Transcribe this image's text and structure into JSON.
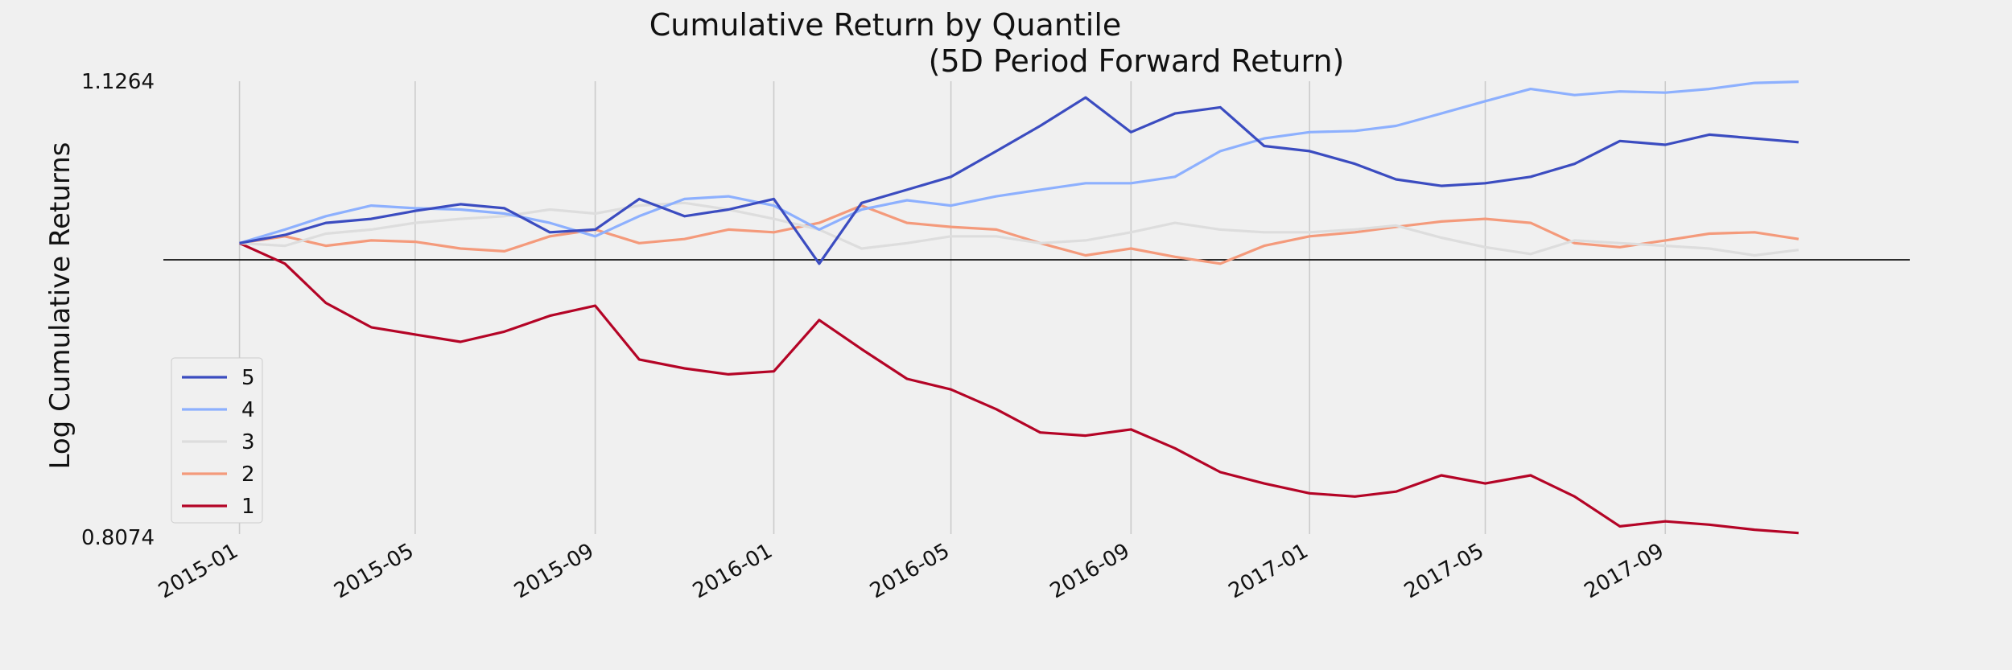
{
  "chart_data": {
    "type": "line",
    "title": "Cumulative Return by Quantile",
    "subtitle": "(5D Period Forward Return)",
    "ylabel": "Log Cumulative Returns",
    "xlabel": "",
    "y_scale": "log",
    "ylim": [
      0.8074,
      1.1264
    ],
    "y_tick_labels": [
      "1.1264",
      "0.8074"
    ],
    "x_tick_labels": [
      "2015-01",
      "2015-05",
      "2015-09",
      "2016-01",
      "2016-05",
      "2016-09",
      "2017-01",
      "2017-05",
      "2017-09"
    ],
    "x_tick_dates": [
      "2015-01-01",
      "2015-05-01",
      "2015-09-01",
      "2016-01-01",
      "2016-05-01",
      "2016-09-01",
      "2017-01-01",
      "2017-05-01",
      "2017-09-01"
    ],
    "x_range": [
      "2014-11-10",
      "2018-02-15"
    ],
    "baseline": 1.0,
    "grid": "vertical",
    "legend_position": "lower-left",
    "x": [
      "2015-01-01",
      "2015-02-01",
      "2015-03-01",
      "2015-04-01",
      "2015-05-01",
      "2015-06-01",
      "2015-07-01",
      "2015-08-01",
      "2015-09-01",
      "2015-10-01",
      "2015-11-01",
      "2015-12-01",
      "2016-01-01",
      "2016-02-01",
      "2016-03-01",
      "2016-04-01",
      "2016-05-01",
      "2016-06-01",
      "2016-07-01",
      "2016-08-01",
      "2016-09-01",
      "2016-10-01",
      "2016-11-01",
      "2016-12-01",
      "2017-01-01",
      "2017-02-01",
      "2017-03-01",
      "2017-04-01",
      "2017-05-01",
      "2017-06-01",
      "2017-07-01",
      "2017-08-01",
      "2017-09-01",
      "2017-10-01",
      "2017-11-01",
      "2017-12-01"
    ],
    "series": [
      {
        "name": "5",
        "color": "#3b4cc0",
        "values": [
          1.0,
          1.006,
          1.015,
          1.018,
          1.024,
          1.029,
          1.026,
          1.008,
          1.01,
          1.033,
          1.02,
          1.025,
          1.033,
          0.985,
          1.03,
          1.04,
          1.05,
          1.07,
          1.09,
          1.113,
          1.085,
          1.1,
          1.105,
          1.074,
          1.07,
          1.06,
          1.048,
          1.043,
          1.045,
          1.05,
          1.06,
          1.078,
          1.075,
          1.083,
          1.08,
          1.077
        ]
      },
      {
        "name": "4",
        "color": "#8db0fe",
        "values": [
          1.0,
          1.01,
          1.02,
          1.028,
          1.026,
          1.025,
          1.022,
          1.015,
          1.005,
          1.02,
          1.033,
          1.035,
          1.028,
          1.01,
          1.025,
          1.032,
          1.028,
          1.035,
          1.04,
          1.045,
          1.045,
          1.05,
          1.07,
          1.08,
          1.085,
          1.086,
          1.09,
          1.1,
          1.11,
          1.12,
          1.115,
          1.118,
          1.117,
          1.12,
          1.125,
          1.126
        ]
      },
      {
        "name": "3",
        "color": "#dddddd",
        "values": [
          1.0,
          0.998,
          1.007,
          1.01,
          1.015,
          1.018,
          1.02,
          1.025,
          1.022,
          1.028,
          1.03,
          1.025,
          1.018,
          1.01,
          0.996,
          1.0,
          1.005,
          1.005,
          1.0,
          1.002,
          1.008,
          1.015,
          1.01,
          1.008,
          1.008,
          1.01,
          1.013,
          1.004,
          0.997,
          0.992,
          1.002,
          1.0,
          0.998,
          0.996,
          0.991,
          0.995
        ]
      },
      {
        "name": "2",
        "color": "#f49a7b",
        "values": [
          1.0,
          1.005,
          0.998,
          1.002,
          1.001,
          0.996,
          0.994,
          1.005,
          1.01,
          1.0,
          1.003,
          1.01,
          1.008,
          1.015,
          1.028,
          1.015,
          1.012,
          1.01,
          1.0,
          0.991,
          0.996,
          0.99,
          0.985,
          0.998,
          1.005,
          1.008,
          1.012,
          1.016,
          1.018,
          1.015,
          1.0,
          0.997,
          1.002,
          1.007,
          1.008,
          1.003
        ]
      },
      {
        "name": "1",
        "color": "#b40426",
        "values": [
          1.0,
          0.985,
          0.957,
          0.94,
          0.935,
          0.93,
          0.937,
          0.948,
          0.955,
          0.918,
          0.912,
          0.908,
          0.91,
          0.945,
          0.925,
          0.905,
          0.898,
          0.885,
          0.87,
          0.868,
          0.872,
          0.86,
          0.845,
          0.838,
          0.832,
          0.83,
          0.833,
          0.843,
          0.838,
          0.843,
          0.83,
          0.812,
          0.815,
          0.813,
          0.81,
          0.808
        ]
      }
    ]
  }
}
